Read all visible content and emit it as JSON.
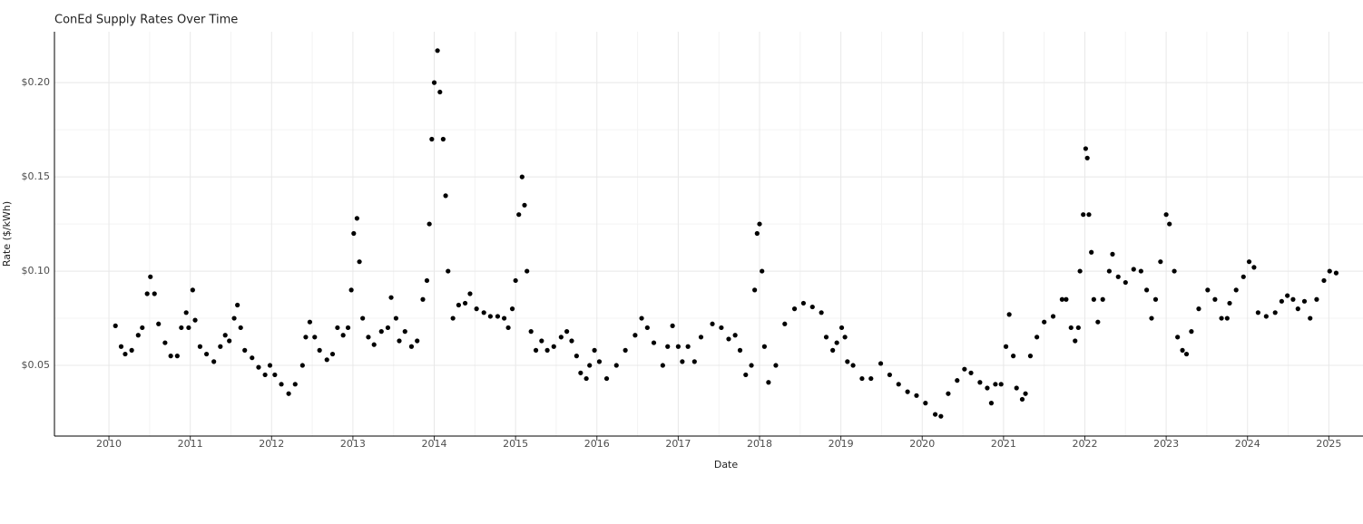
{
  "chart_data": {
    "type": "scatter",
    "title": "ConEd Supply Rates Over Time",
    "x_label": "Date",
    "y_label": "Rate ($/kWh)",
    "color": "#000000",
    "grid": true,
    "xlim": [
      2009.33,
      2025.42
    ],
    "ylim": [
      0.0125,
      0.227
    ],
    "xticks": [
      2010,
      2011,
      2012,
      2013,
      2014,
      2015,
      2016,
      2017,
      2018,
      2019,
      2020,
      2021,
      2022,
      2023,
      2024,
      2025
    ],
    "yticks": [
      {
        "value": 0.05,
        "label": "$0.05"
      },
      {
        "value": 0.1,
        "label": "$0.10"
      },
      {
        "value": 0.15,
        "label": "$0.15"
      },
      {
        "value": 0.2,
        "label": "$0.20"
      }
    ],
    "x": [
      2010.08,
      2010.15,
      2010.2,
      2010.28,
      2010.36,
      2010.41,
      2010.47,
      2010.51,
      2010.56,
      2010.61,
      2010.69,
      2010.76,
      2010.84,
      2010.89,
      2010.95,
      2010.98,
      2011.03,
      2011.06,
      2011.12,
      2011.2,
      2011.29,
      2011.37,
      2011.43,
      2011.48,
      2011.54,
      2011.58,
      2011.62,
      2011.67,
      2011.76,
      2011.84,
      2011.92,
      2011.98,
      2012.04,
      2012.12,
      2012.21,
      2012.29,
      2012.38,
      2012.42,
      2012.47,
      2012.53,
      2012.59,
      2012.68,
      2012.75,
      2012.81,
      2012.88,
      2012.94,
      2012.98,
      2013.01,
      2013.05,
      2013.08,
      2013.12,
      2013.19,
      2013.26,
      2013.35,
      2013.43,
      2013.47,
      2013.53,
      2013.57,
      2013.64,
      2013.72,
      2013.79,
      2013.86,
      2013.91,
      2013.94,
      2013.97,
      2014.0,
      2014.04,
      2014.07,
      2014.11,
      2014.14,
      2014.17,
      2014.23,
      2014.3,
      2014.38,
      2014.44,
      2014.52,
      2014.61,
      2014.69,
      2014.78,
      2014.86,
      2014.91,
      2014.96,
      2015.0,
      2015.04,
      2015.08,
      2015.11,
      2015.14,
      2015.19,
      2015.25,
      2015.32,
      2015.39,
      2015.47,
      2015.56,
      2015.63,
      2015.69,
      2015.75,
      2015.8,
      2015.87,
      2015.91,
      2015.97,
      2016.03,
      2016.12,
      2016.24,
      2016.35,
      2016.47,
      2016.55,
      2016.62,
      2016.7,
      2016.81,
      2016.87,
      2016.93,
      2017.0,
      2017.05,
      2017.12,
      2017.2,
      2017.28,
      2017.42,
      2017.53,
      2017.62,
      2017.7,
      2017.76,
      2017.83,
      2017.9,
      2017.94,
      2017.97,
      2018.0,
      2018.03,
      2018.06,
      2018.11,
      2018.2,
      2018.31,
      2018.43,
      2018.54,
      2018.65,
      2018.76,
      2018.82,
      2018.9,
      2018.95,
      2019.01,
      2019.05,
      2019.08,
      2019.15,
      2019.26,
      2019.37,
      2019.49,
      2019.6,
      2019.71,
      2019.82,
      2019.93,
      2020.04,
      2020.16,
      2020.23,
      2020.32,
      2020.43,
      2020.52,
      2020.6,
      2020.71,
      2020.8,
      2020.85,
      2020.9,
      2020.97,
      2021.03,
      2021.07,
      2021.12,
      2021.16,
      2021.23,
      2021.27,
      2021.33,
      2021.41,
      2021.5,
      2021.61,
      2021.72,
      2021.77,
      2021.83,
      2021.88,
      2021.92,
      2021.94,
      2021.98,
      2022.01,
      2022.03,
      2022.05,
      2022.08,
      2022.11,
      2022.16,
      2022.22,
      2022.3,
      2022.34,
      2022.41,
      2022.5,
      2022.6,
      2022.69,
      2022.76,
      2022.82,
      2022.87,
      2022.93,
      2023.0,
      2023.04,
      2023.1,
      2023.14,
      2023.2,
      2023.25,
      2023.31,
      2023.4,
      2023.51,
      2023.6,
      2023.68,
      2023.75,
      2023.78,
      2023.86,
      2023.95,
      2024.02,
      2024.08,
      2024.13,
      2024.23,
      2024.34,
      2024.42,
      2024.49,
      2024.56,
      2024.62,
      2024.7,
      2024.77,
      2024.85,
      2024.94,
      2025.01,
      2025.09
    ],
    "values": [
      0.071,
      0.06,
      0.056,
      0.058,
      0.066,
      0.07,
      0.088,
      0.097,
      0.088,
      0.072,
      0.062,
      0.055,
      0.055,
      0.07,
      0.078,
      0.07,
      0.09,
      0.074,
      0.06,
      0.056,
      0.052,
      0.06,
      0.066,
      0.063,
      0.075,
      0.082,
      0.07,
      0.058,
      0.054,
      0.049,
      0.045,
      0.05,
      0.045,
      0.04,
      0.035,
      0.04,
      0.05,
      0.065,
      0.073,
      0.065,
      0.058,
      0.053,
      0.056,
      0.07,
      0.066,
      0.07,
      0.09,
      0.12,
      0.128,
      0.105,
      0.075,
      0.065,
      0.061,
      0.068,
      0.07,
      0.086,
      0.075,
      0.063,
      0.068,
      0.06,
      0.063,
      0.085,
      0.095,
      0.125,
      0.17,
      0.2,
      0.217,
      0.195,
      0.17,
      0.14,
      0.1,
      0.075,
      0.082,
      0.083,
      0.088,
      0.08,
      0.078,
      0.076,
      0.076,
      0.075,
      0.07,
      0.08,
      0.095,
      0.13,
      0.15,
      0.135,
      0.1,
      0.068,
      0.058,
      0.063,
      0.058,
      0.06,
      0.065,
      0.068,
      0.063,
      0.055,
      0.046,
      0.043,
      0.05,
      0.058,
      0.052,
      0.043,
      0.05,
      0.058,
      0.066,
      0.075,
      0.07,
      0.062,
      0.05,
      0.06,
      0.071,
      0.06,
      0.052,
      0.06,
      0.052,
      0.065,
      0.072,
      0.07,
      0.064,
      0.066,
      0.058,
      0.045,
      0.05,
      0.09,
      0.12,
      0.125,
      0.1,
      0.06,
      0.041,
      0.05,
      0.072,
      0.08,
      0.083,
      0.081,
      0.078,
      0.065,
      0.058,
      0.062,
      0.07,
      0.065,
      0.052,
      0.05,
      0.043,
      0.043,
      0.051,
      0.045,
      0.04,
      0.036,
      0.034,
      0.03,
      0.024,
      0.023,
      0.035,
      0.042,
      0.048,
      0.046,
      0.041,
      0.038,
      0.03,
      0.04,
      0.04,
      0.06,
      0.077,
      0.055,
      0.038,
      0.032,
      0.035,
      0.055,
      0.065,
      0.073,
      0.076,
      0.085,
      0.085,
      0.07,
      0.063,
      0.07,
      0.1,
      0.13,
      0.165,
      0.16,
      0.13,
      0.11,
      0.085,
      0.073,
      0.085,
      0.1,
      0.109,
      0.097,
      0.094,
      0.101,
      0.1,
      0.09,
      0.075,
      0.085,
      0.105,
      0.13,
      0.125,
      0.1,
      0.065,
      0.058,
      0.056,
      0.068,
      0.08,
      0.09,
      0.085,
      0.075,
      0.075,
      0.083,
      0.09,
      0.097,
      0.105,
      0.102,
      0.078,
      0.076,
      0.078,
      0.084,
      0.087,
      0.085,
      0.08,
      0.084,
      0.075,
      0.085,
      0.095,
      0.1,
      0.099
    ]
  }
}
